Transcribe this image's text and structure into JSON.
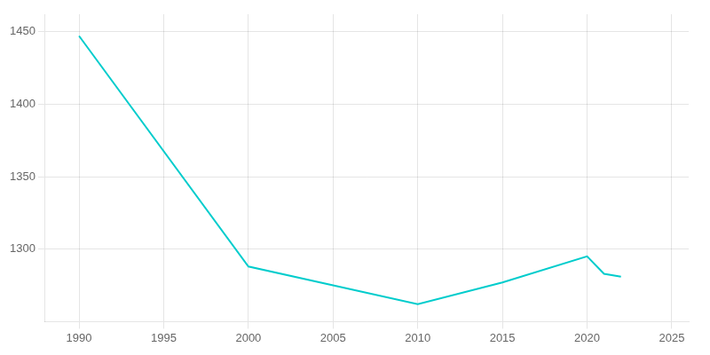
{
  "chart_data": {
    "type": "line",
    "x": [
      1990,
      2000,
      2005,
      2010,
      2015,
      2020,
      2021,
      2022
    ],
    "values": [
      1447,
      1288,
      1275,
      1262,
      1277,
      1295,
      1283,
      1281
    ],
    "color": "#00CCCC",
    "xlim": [
      1988,
      2026
    ],
    "ylim": [
      1250,
      1462
    ],
    "xticks": [
      1990,
      1995,
      2000,
      2005,
      2010,
      2015,
      2020,
      2025
    ],
    "yticks": [
      1300,
      1350,
      1400,
      1450
    ],
    "grid": true
  }
}
